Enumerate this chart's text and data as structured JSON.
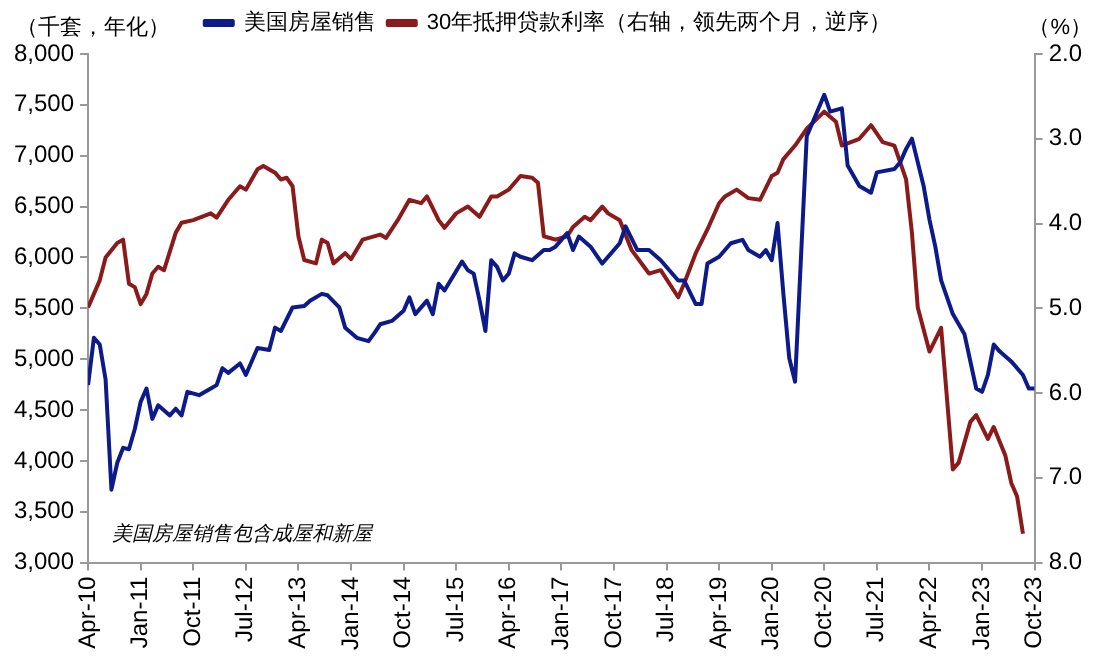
{
  "chart_data": {
    "type": "line",
    "ylabel": "（千套，年化）",
    "y2label": "（%）",
    "annotations": [
      "美国房屋销售包含成屋和新屋"
    ],
    "series": [
      {
        "name": "美国房屋销售",
        "color": "#0d1b8a",
        "x": [
          "2010-04",
          "2010-05",
          "2010-06",
          "2010-07",
          "2010-08",
          "2010-09",
          "2010-10",
          "2010-11",
          "2010-12",
          "2011-01",
          "2011-02",
          "2011-03",
          "2011-04",
          "2011-06",
          "2011-07",
          "2011-08",
          "2011-09",
          "2011-11",
          "2012-01",
          "2012-02",
          "2012-03",
          "2012-04",
          "2012-06",
          "2012-07",
          "2012-09",
          "2012-11",
          "2012-12",
          "2013-01",
          "2013-03",
          "2013-05",
          "2013-06",
          "2013-08",
          "2013-09",
          "2013-11",
          "2013-12",
          "2014-02",
          "2014-04",
          "2014-05",
          "2014-06",
          "2014-08",
          "2014-10",
          "2014-11",
          "2014-12",
          "2015-02",
          "2015-03",
          "2015-04",
          "2015-05",
          "2015-08",
          "2015-09",
          "2015-10",
          "2015-11",
          "2015-12",
          "2016-01",
          "2016-02",
          "2016-03",
          "2016-04",
          "2016-05",
          "2016-06",
          "2016-08",
          "2016-10",
          "2016-11",
          "2016-12",
          "2017-02",
          "2017-03",
          "2017-04",
          "2017-06",
          "2017-08",
          "2017-11",
          "2017-12",
          "2018-02",
          "2018-04",
          "2018-06",
          "2018-09",
          "2018-10",
          "2018-12",
          "2019-01",
          "2019-02",
          "2019-04",
          "2019-06",
          "2019-08",
          "2019-09",
          "2019-11",
          "2019-12",
          "2020-01",
          "2020-02",
          "2020-03",
          "2020-04",
          "2020-05",
          "2020-07",
          "2020-08",
          "2020-10",
          "2020-11",
          "2021-01",
          "2021-02",
          "2021-04",
          "2021-06",
          "2021-07",
          "2021-10",
          "2021-11",
          "2021-12",
          "2022-01",
          "2022-03",
          "2022-04",
          "2022-05",
          "2022-06",
          "2022-08",
          "2022-10",
          "2022-12",
          "2023-01",
          "2023-02",
          "2023-03",
          "2023-04",
          "2023-06",
          "2023-08",
          "2023-09",
          "2023-10"
        ],
        "values": [
          4745,
          5210,
          5144,
          4800,
          3717,
          3982,
          4128,
          4115,
          4314,
          4580,
          4712,
          4413,
          4546,
          4447,
          4513,
          4447,
          4679,
          4646,
          4712,
          4745,
          4911,
          4865,
          4958,
          4845,
          5110,
          5090,
          5310,
          5277,
          5509,
          5522,
          5575,
          5642,
          5628,
          5509,
          5310,
          5210,
          5177,
          5256,
          5343,
          5376,
          5476,
          5608,
          5443,
          5575,
          5443,
          5741,
          5675,
          5960,
          5874,
          5841,
          5575,
          5277,
          5973,
          5907,
          5774,
          5841,
          6040,
          6007,
          5973,
          6073,
          6073,
          6106,
          6239,
          6073,
          6206,
          6106,
          5940,
          6140,
          6305,
          6073,
          6073,
          5973,
          5774,
          5774,
          5542,
          5542,
          5940,
          6007,
          6140,
          6173,
          6073,
          6007,
          6073,
          5973,
          6338,
          5642,
          5011,
          4779,
          7193,
          7326,
          7599,
          7433,
          7466,
          6903,
          6703,
          6637,
          6836,
          6869,
          6936,
          7067,
          7168,
          6703,
          6372,
          6106,
          5774,
          5443,
          5244,
          4712,
          4679,
          4845,
          5144,
          5077,
          4978,
          4845,
          4712,
          4712
        ]
      },
      {
        "name": "30年抵押贷款利率（右轴，领先两个月，逆序）",
        "color": "#8b1a1a",
        "axis": "y2",
        "x": [
          "2010-04",
          "2010-06",
          "2010-07",
          "2010-09",
          "2010-10",
          "2010-11",
          "2010-12",
          "2011-01",
          "2011-02",
          "2011-03",
          "2011-04",
          "2011-05",
          "2011-07",
          "2011-08",
          "2011-10",
          "2012-01",
          "2012-02",
          "2012-04",
          "2012-06",
          "2012-07",
          "2012-09",
          "2012-10",
          "2012-12",
          "2013-01",
          "2013-02",
          "2013-03",
          "2013-04",
          "2013-05",
          "2013-07",
          "2013-08",
          "2013-09",
          "2013-10",
          "2013-12",
          "2014-01",
          "2014-03",
          "2014-06",
          "2014-07",
          "2014-09",
          "2014-11",
          "2015-01",
          "2015-02",
          "2015-04",
          "2015-05",
          "2015-07",
          "2015-09",
          "2015-11",
          "2016-01",
          "2016-02",
          "2016-04",
          "2016-06",
          "2016-08",
          "2016-09",
          "2016-10",
          "2016-12",
          "2017-02",
          "2017-03",
          "2017-05",
          "2017-06",
          "2017-08",
          "2017-09",
          "2017-11",
          "2018-01",
          "2018-04",
          "2018-06",
          "2018-09",
          "2018-10",
          "2018-12",
          "2019-02",
          "2019-04",
          "2019-05",
          "2019-07",
          "2019-09",
          "2019-11",
          "2020-01",
          "2020-02",
          "2020-03",
          "2020-05",
          "2020-07",
          "2020-10",
          "2020-12",
          "2021-01",
          "2021-04",
          "2021-06",
          "2021-08",
          "2021-10",
          "2021-12",
          "2022-01",
          "2022-02",
          "2022-04",
          "2022-06",
          "2022-08",
          "2022-09",
          "2022-11",
          "2022-12",
          "2023-02",
          "2023-03",
          "2023-05",
          "2023-06",
          "2023-07",
          "2023-08"
        ],
        "values": [
          4.99,
          4.67,
          4.4,
          4.23,
          4.19,
          4.71,
          4.75,
          4.95,
          4.83,
          4.59,
          4.51,
          4.55,
          4.11,
          3.99,
          3.96,
          3.88,
          3.93,
          3.72,
          3.56,
          3.6,
          3.36,
          3.32,
          3.4,
          3.48,
          3.46,
          3.56,
          4.15,
          4.43,
          4.47,
          4.19,
          4.23,
          4.47,
          4.35,
          4.42,
          4.19,
          4.13,
          4.17,
          3.96,
          3.72,
          3.76,
          3.68,
          3.96,
          4.05,
          3.88,
          3.8,
          3.92,
          3.68,
          3.68,
          3.6,
          3.44,
          3.46,
          3.52,
          4.15,
          4.19,
          4.15,
          4.04,
          3.92,
          3.96,
          3.8,
          3.88,
          3.96,
          4.31,
          4.59,
          4.55,
          4.87,
          4.71,
          4.35,
          4.07,
          3.76,
          3.68,
          3.6,
          3.7,
          3.72,
          3.44,
          3.4,
          3.24,
          3.08,
          2.88,
          2.68,
          2.8,
          3.08,
          3.0,
          2.84,
          3.04,
          3.08,
          3.48,
          4.11,
          4.99,
          5.51,
          5.23,
          6.9,
          6.82,
          6.34,
          6.26,
          6.54,
          6.4,
          6.74,
          7.06,
          7.22,
          7.66
        ]
      }
    ],
    "xlim": [
      "2010-04",
      "2023-10"
    ],
    "xticks": [
      {
        "value": "2010-04",
        "label": "Apr-10"
      },
      {
        "value": "2011-01",
        "label": "Jan-11"
      },
      {
        "value": "2011-10",
        "label": "Oct-11"
      },
      {
        "value": "2012-07",
        "label": "Jul-12"
      },
      {
        "value": "2013-04",
        "label": "Apr-13"
      },
      {
        "value": "2014-01",
        "label": "Jan-14"
      },
      {
        "value": "2014-10",
        "label": "Oct-14"
      },
      {
        "value": "2015-07",
        "label": "Jul-15"
      },
      {
        "value": "2016-04",
        "label": "Apr-16"
      },
      {
        "value": "2017-01",
        "label": "Jan-17"
      },
      {
        "value": "2017-10",
        "label": "Oct-17"
      },
      {
        "value": "2018-07",
        "label": "Jul-18"
      },
      {
        "value": "2019-04",
        "label": "Apr-19"
      },
      {
        "value": "2020-01",
        "label": "Jan-20"
      },
      {
        "value": "2020-10",
        "label": "Oct-20"
      },
      {
        "value": "2021-07",
        "label": "Jul-21"
      },
      {
        "value": "2022-04",
        "label": "Apr-22"
      },
      {
        "value": "2023-01",
        "label": "Jan-23"
      },
      {
        "value": "2023-10",
        "label": "Oct-23"
      }
    ],
    "ylim": [
      3000,
      8000
    ],
    "yticks": [
      {
        "value": 3000,
        "label": "3,000"
      },
      {
        "value": 3500,
        "label": "3,500"
      },
      {
        "value": 4000,
        "label": "4,000"
      },
      {
        "value": 4500,
        "label": "4,500"
      },
      {
        "value": 5000,
        "label": "5,000"
      },
      {
        "value": 5500,
        "label": "5,500"
      },
      {
        "value": 6000,
        "label": "6,000"
      },
      {
        "value": 6500,
        "label": "6,500"
      },
      {
        "value": 7000,
        "label": "7,000"
      },
      {
        "value": 7500,
        "label": "7,500"
      },
      {
        "value": 8000,
        "label": "8,000"
      }
    ],
    "y2lim": [
      8.0,
      2.0
    ],
    "y2ticks": [
      {
        "value": 2,
        "label": "2.0"
      },
      {
        "value": 3,
        "label": "3.0"
      },
      {
        "value": 4,
        "label": "4.0"
      },
      {
        "value": 5,
        "label": "5.0"
      },
      {
        "value": 6,
        "label": "6.0"
      },
      {
        "value": 7,
        "label": "7.0"
      },
      {
        "value": 8,
        "label": "8.0"
      }
    ],
    "grid": false,
    "legend": "top",
    "line_style": "solid"
  }
}
